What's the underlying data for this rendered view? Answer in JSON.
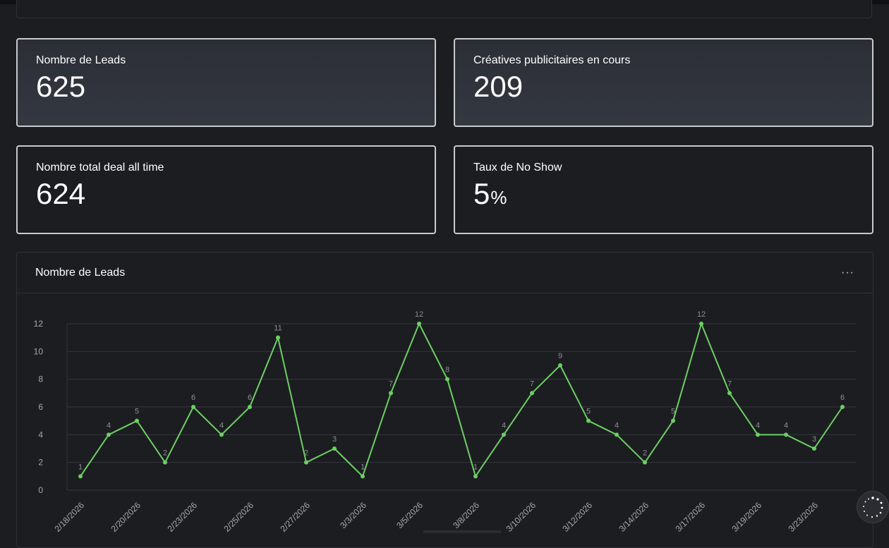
{
  "cards": [
    {
      "label": "Nombre de Leads",
      "value": "625",
      "unit": ""
    },
    {
      "label": "Créatives publicitaires en cours",
      "value": "209",
      "unit": ""
    },
    {
      "label": "Nombre total deal all time",
      "value": "624",
      "unit": ""
    },
    {
      "label": "Taux de No Show",
      "value": "5",
      "unit": "%"
    }
  ],
  "chart_panel": {
    "title": "Nombre de Leads",
    "menu_label": "···"
  },
  "colors": {
    "line": "#6ccf63",
    "grid": "#34363c",
    "tick": "#a8a9ad",
    "label": "#8d8e92"
  },
  "chart_data": {
    "type": "line",
    "title": "Nombre de Leads",
    "xlabel": "",
    "ylabel": "",
    "ylim": [
      0,
      12
    ],
    "yticks": [
      0,
      2,
      4,
      6,
      8,
      10,
      12
    ],
    "grid": true,
    "x_tick_labels": [
      "2/18/2026",
      "2/20/2026",
      "2/23/2026",
      "2/25/2026",
      "2/27/2026",
      "3/3/2026",
      "3/5/2026",
      "3/8/2026",
      "3/10/2026",
      "3/12/2026",
      "3/14/2026",
      "3/17/2026",
      "3/19/2026",
      "3/23/2026"
    ],
    "series": [
      {
        "values": [
          1,
          4,
          5,
          2,
          6,
          4,
          6,
          11,
          2,
          3,
          1,
          7,
          12,
          8,
          1,
          4,
          7,
          9,
          5,
          4,
          2,
          5,
          12,
          7,
          4,
          4,
          3,
          6
        ]
      }
    ]
  }
}
